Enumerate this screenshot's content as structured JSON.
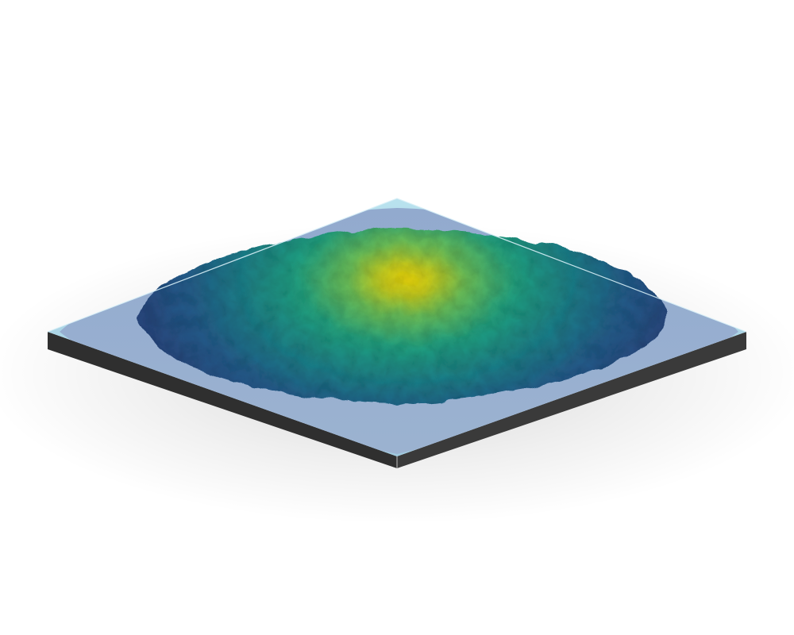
{
  "scene": {
    "kind": "3d-rendered-heightmap-slab",
    "colormap": "viridis",
    "colors": {
      "background": "#ffffff",
      "slab_side": "#2f2f2f",
      "slab_top_glass": "#a9d6e5",
      "basin_fill": "#8fa3c6",
      "surface_low": "#2b4e86",
      "surface_mid": "#1f8f86",
      "surface_high": "#4cc26e",
      "surface_peak": "#e8d21a"
    }
  }
}
